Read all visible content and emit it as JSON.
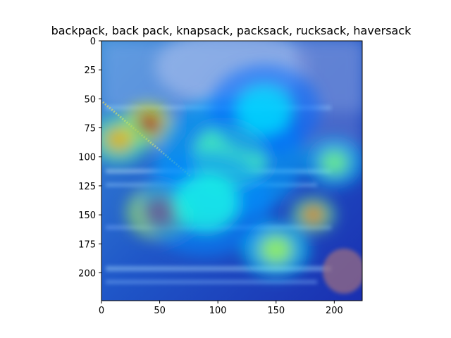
{
  "chart_data": {
    "type": "heatmap",
    "title": "backpack, back pack, knapsack, packsack, rucksack, haversack",
    "xlabel": "",
    "ylabel": "",
    "xlim": [
      0,
      224
    ],
    "ylim": [
      224,
      0
    ],
    "xticks": [
      0,
      50,
      100,
      150,
      200
    ],
    "yticks": [
      0,
      25,
      50,
      75,
      100,
      125,
      150,
      175,
      200
    ],
    "grid": false,
    "colormap": "jet",
    "hotspots": [
      {
        "x": 40,
        "y": 72,
        "intensity": 0.95,
        "spread": 14
      },
      {
        "x": 15,
        "y": 85,
        "intensity": 0.7,
        "spread": 16
      },
      {
        "x": 50,
        "y": 148,
        "intensity": 0.85,
        "spread": 18
      },
      {
        "x": 182,
        "y": 150,
        "intensity": 0.75,
        "spread": 12
      },
      {
        "x": 150,
        "y": 180,
        "intensity": 0.55,
        "spread": 18
      },
      {
        "x": 110,
        "y": 100,
        "intensity": 0.45,
        "spread": 40
      },
      {
        "x": 90,
        "y": 140,
        "intensity": 0.4,
        "spread": 35
      },
      {
        "x": 200,
        "y": 105,
        "intensity": 0.5,
        "spread": 16
      },
      {
        "x": 140,
        "y": 60,
        "intensity": 0.35,
        "spread": 30
      }
    ]
  }
}
